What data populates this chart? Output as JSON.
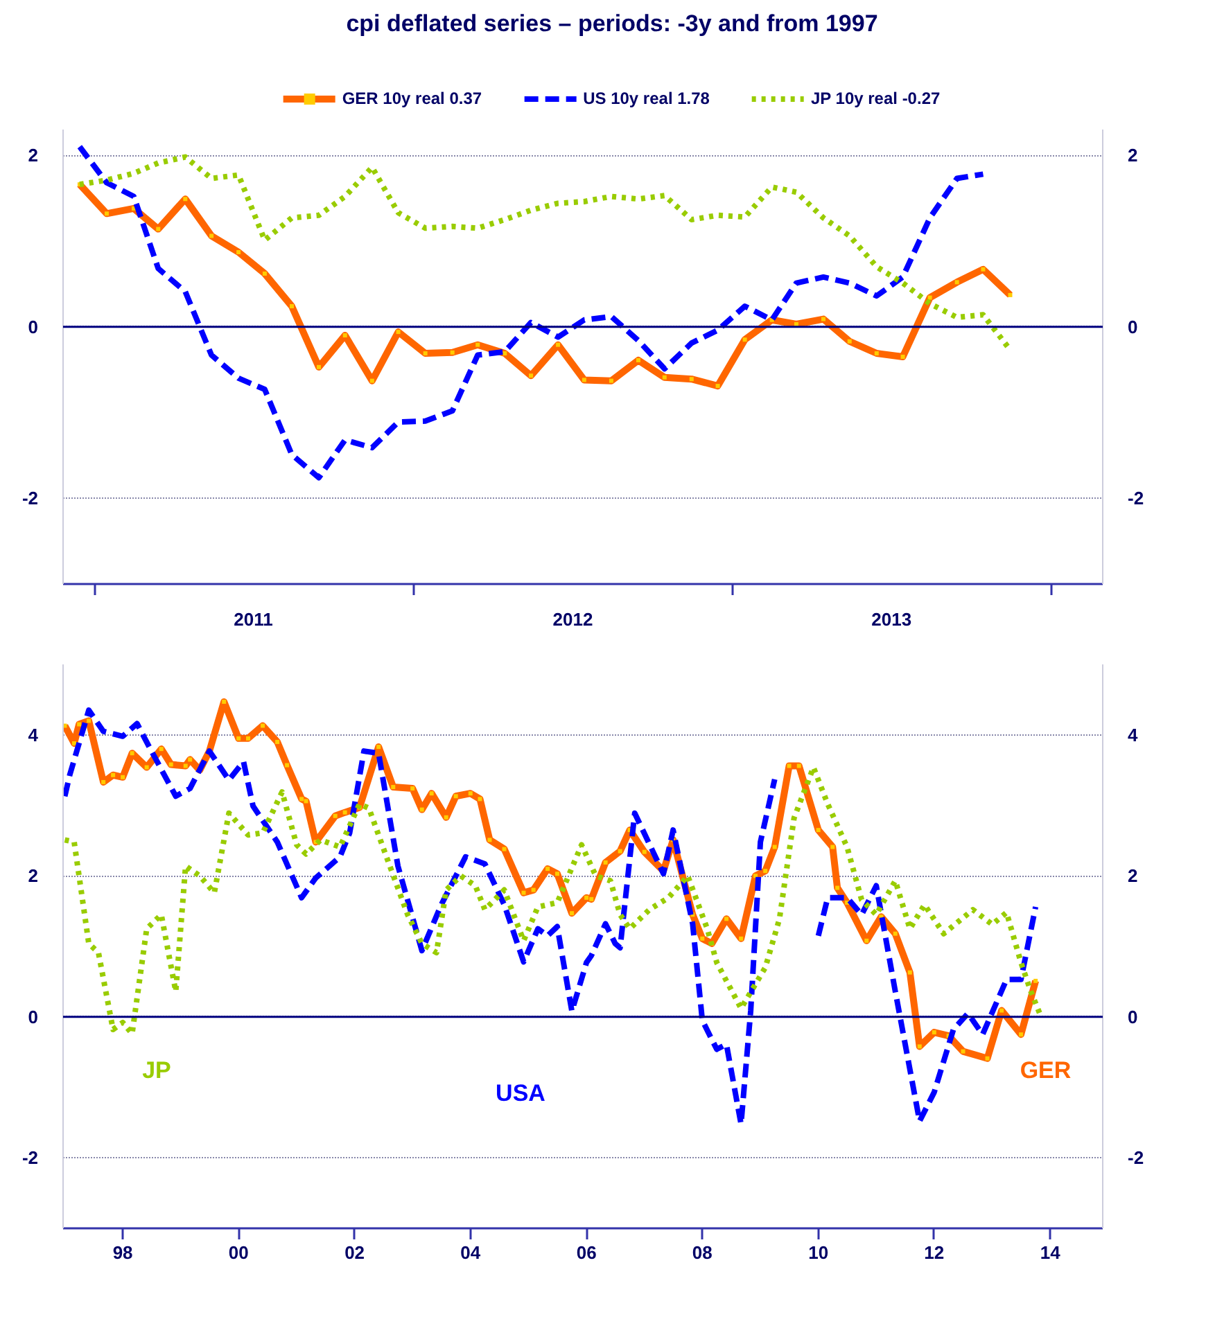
{
  "chart_data": [
    {
      "type": "line",
      "title": "cpi deflated series – periods: -3y and from 1997",
      "legend": "top",
      "grid": "y",
      "x": [
        "2010-12-15",
        "2011-01-15",
        "2011-02-15",
        "2011-03-15",
        "2011-04-15",
        "2011-05-15",
        "2011-06-15",
        "2011-07-15",
        "2011-08-15",
        "2011-09-15",
        "2011-10-15",
        "2011-11-15",
        "2011-12-15",
        "2012-01-15",
        "2012-02-15",
        "2012-03-15",
        "2012-04-15",
        "2012-05-15",
        "2012-06-15",
        "2012-07-15",
        "2012-08-15",
        "2012-09-15",
        "2012-10-15",
        "2012-11-15",
        "2012-12-15",
        "2013-01-15",
        "2013-02-15",
        "2013-03-15",
        "2013-04-15",
        "2013-05-15",
        "2013-06-15",
        "2013-07-15",
        "2013-08-15",
        "2013-09-15",
        "2013-10-15",
        "2013-11-15"
      ],
      "series": [
        {
          "name": "GER 10y real 0.37",
          "color": "#ff6600",
          "line_style": "solid",
          "marker": "square",
          "values": [
            1.66,
            1.32,
            1.38,
            1.14,
            1.49,
            1.06,
            0.87,
            0.62,
            0.24,
            -0.47,
            -0.1,
            -0.63,
            -0.06,
            -0.31,
            -0.3,
            -0.21,
            -0.31,
            -0.57,
            -0.21,
            -0.62,
            -0.63,
            -0.39,
            -0.59,
            -0.61,
            -0.69,
            -0.15,
            0.08,
            0.03,
            0.09,
            -0.17,
            -0.31,
            -0.35,
            0.34,
            0.52,
            0.67,
            0.37
          ]
        },
        {
          "name": "US 10y real 1.78",
          "color": "#0000ff",
          "line_style": "dashed",
          "values": [
            2.1,
            1.68,
            1.52,
            0.68,
            0.41,
            -0.33,
            -0.6,
            -0.73,
            -1.49,
            -1.76,
            -1.32,
            -1.41,
            -1.11,
            -1.1,
            -0.98,
            -0.33,
            -0.29,
            0.05,
            -0.12,
            0.08,
            0.12,
            -0.16,
            -0.49,
            -0.19,
            -0.04,
            0.24,
            0.08,
            0.51,
            0.58,
            0.51,
            0.36,
            0.58,
            1.27,
            1.73,
            1.78,
            null
          ]
        },
        {
          "name": "JP 10y real -0.27",
          "color": "#99cc00",
          "line_style": "dotted",
          "values": [
            1.66,
            1.71,
            1.79,
            1.91,
            1.98,
            1.73,
            1.77,
            1.01,
            1.27,
            1.3,
            1.52,
            1.86,
            1.33,
            1.15,
            1.17,
            1.15,
            1.25,
            1.36,
            1.44,
            1.46,
            1.52,
            1.49,
            1.53,
            1.25,
            1.3,
            1.28,
            1.63,
            1.57,
            1.27,
            1.06,
            0.7,
            0.51,
            0.27,
            0.11,
            0.14,
            -0.27
          ]
        }
      ],
      "xlim": [
        "2010-11-26",
        "2014-03-01"
      ],
      "xticks": [
        {
          "value": "2011-01-01",
          "label": null
        },
        {
          "value": "2011-07-02",
          "label": "2011"
        },
        {
          "value": "2012-01-01",
          "label": null
        },
        {
          "value": "2012-07-02",
          "label": "2012"
        },
        {
          "value": "2013-01-01",
          "label": null
        },
        {
          "value": "2013-07-02",
          "label": "2013"
        },
        {
          "value": "2014-01-01",
          "label": null
        }
      ],
      "ylim": [
        -3,
        2.3
      ],
      "yticks": [
        -2,
        0,
        2
      ],
      "y2lim": [
        -3,
        2.3
      ],
      "y2ticks": [
        -2,
        0,
        2
      ],
      "ref_lines": [
        {
          "axis": "y",
          "value": 0,
          "color": "#000080",
          "line_style": "solid"
        }
      ]
    },
    {
      "type": "line",
      "grid": "y",
      "series": [
        {
          "color": "#ff6600",
          "line_style": "solid",
          "marker": "square",
          "x": [
            "1997-01",
            "1997-03",
            "1997-04",
            "1997-06",
            "1997-09",
            "1997-11",
            "1998-01",
            "1998-03",
            "1998-06",
            "1998-09",
            "1998-11",
            "1999-02",
            "1999-03",
            "1999-05",
            "1999-07",
            "1999-10",
            "2000-01",
            "2000-03",
            "2000-06",
            "2000-09",
            "2000-11",
            "2001-02",
            "2001-03",
            "2001-05",
            "2001-09",
            "2001-11",
            "2002-02",
            "2002-06",
            "2002-09",
            "2003-01",
            "2003-03",
            "2003-05",
            "2003-08",
            "2003-10",
            "2004-01",
            "2004-03",
            "2004-05",
            "2004-08",
            "2004-12",
            "2005-02",
            "2005-05",
            "2005-07",
            "2005-10",
            "2006-01",
            "2006-02",
            "2006-05",
            "2006-08",
            "2006-10",
            "2007-01",
            "2007-05",
            "2007-07",
            "2007-11",
            "2008-01",
            "2008-03",
            "2008-06",
            "2008-09",
            "2008-12",
            "2009-02",
            "2009-04",
            "2009-07",
            "2009-09",
            "2010-01",
            "2010-04",
            "2010-05",
            "2010-07",
            "2010-11",
            "2011-02",
            "2011-05",
            "2011-08",
            "2011-10",
            "2012-01",
            "2012-04",
            "2012-07",
            "2012-12",
            "2013-03",
            "2013-07",
            "2013-10"
          ],
          "values": [
            4.13,
            3.88,
            4.15,
            4.2,
            3.33,
            3.43,
            3.4,
            3.74,
            3.54,
            3.8,
            3.58,
            3.56,
            3.65,
            3.5,
            3.77,
            4.47,
            3.95,
            3.95,
            4.13,
            3.9,
            3.57,
            3.09,
            3.06,
            2.48,
            2.85,
            2.9,
            2.97,
            3.83,
            3.26,
            3.24,
            2.94,
            3.17,
            2.83,
            3.13,
            3.17,
            3.09,
            2.51,
            2.38,
            1.76,
            1.8,
            2.1,
            2.03,
            1.47,
            1.69,
            1.67,
            2.19,
            2.35,
            2.65,
            2.34,
            2.07,
            2.51,
            1.45,
            1.11,
            1.04,
            1.39,
            1.11,
            2.0,
            2.07,
            2.41,
            3.56,
            3.56,
            2.65,
            2.41,
            1.83,
            1.62,
            1.08,
            1.42,
            1.18,
            0.63,
            -0.42,
            -0.22,
            -0.27,
            -0.49,
            -0.59,
            0.09,
            -0.25,
            0.51
          ]
        },
        {
          "color": "#0000ff",
          "line_style": "dashed",
          "x": [
            "1997-01",
            "1997-02",
            "1997-06",
            "1997-09",
            "1998-01",
            "1998-04",
            "1998-07",
            "1998-12",
            "1999-03",
            "1999-07",
            "1999-11",
            "2000-02",
            "2000-04",
            "2000-09",
            "2001-02",
            "2001-05",
            "2001-10",
            "2001-12",
            "2002-03",
            "2002-06",
            "2002-10",
            "2003-03",
            "2003-07",
            "2003-12",
            "2004-04",
            "2004-08",
            "2004-12",
            "2005-03",
            "2005-05",
            "2005-07",
            "2005-10",
            "2006-01",
            "2006-02",
            "2006-05",
            "2006-07",
            "2006-08",
            "2006-11",
            "2007-05",
            "2007-07",
            "2007-11",
            "2008-01",
            "2008-04",
            "2008-06",
            "2008-09",
            "2008-11",
            "2009-01",
            "2009-04",
            "2009-07",
            "2009-09",
            "2010-01",
            "2010-03",
            "2010-07",
            "2010-10",
            "2011-01",
            "2011-05",
            "2011-10",
            "2012-01",
            "2012-05",
            "2012-08",
            "2012-11",
            "2013-04",
            "2013-07",
            "2013-10"
          ],
          "values": [
            3.13,
            3.43,
            4.35,
            4.05,
            3.98,
            4.16,
            3.77,
            3.13,
            3.24,
            3.77,
            3.36,
            3.62,
            2.99,
            2.48,
            1.69,
            1.97,
            2.27,
            2.61,
            3.77,
            3.74,
            2.14,
            0.94,
            1.59,
            2.27,
            2.17,
            1.59,
            0.78,
            1.25,
            1.15,
            1.28,
            0.08,
            0.77,
            0.87,
            1.32,
            1.04,
            0.98,
            2.89,
            2.03,
            2.65,
            1.32,
            -0.05,
            -0.46,
            -0.39,
            -1.52,
            0.09,
            2.48,
            3.37,
            null,
            null,
            1.15,
            1.69,
            1.69,
            1.45,
            1.86,
            0.36,
            -1.48,
            -1.07,
            -0.18,
            0.05,
            -0.25,
            0.53,
            0.53,
            1.56
          ]
        },
        {
          "color": "#99cc00",
          "line_style": "dotted",
          "x": [
            "1997-01",
            "1997-03",
            "1997-06",
            "1997-08",
            "1997-11",
            "1998-01",
            "1998-03",
            "1998-06",
            "1998-09",
            "1998-12",
            "1999-02",
            "1999-05",
            "1999-08",
            "1999-11",
            "2000-03",
            "2000-06",
            "2000-10",
            "2001-01",
            "2001-03",
            "2001-06",
            "2001-10",
            "2002-02",
            "2002-04",
            "2002-08",
            "2002-12",
            "2003-03",
            "2003-06",
            "2003-08",
            "2003-11",
            "2004-02",
            "2004-04",
            "2004-08",
            "2004-12",
            "2005-03",
            "2005-07",
            "2005-12",
            "2006-03",
            "2006-06",
            "2006-08",
            "2006-10",
            "2007-02",
            "2007-06",
            "2007-10",
            "2008-02",
            "2008-04",
            "2008-09",
            "2009-02",
            "2009-05",
            "2009-08",
            "2009-12",
            "2010-03",
            "2010-07",
            "2010-10",
            "2011-01",
            "2011-05",
            "2011-08",
            "2011-11",
            "2012-03",
            "2012-09",
            "2013-01",
            "2013-04",
            "2013-07",
            "2013-09",
            "2013-11"
          ],
          "values": [
            2.51,
            2.48,
            1.04,
            0.91,
            -0.18,
            -0.08,
            -0.24,
            1.25,
            1.45,
            0.36,
            2.14,
            2.0,
            1.76,
            2.89,
            2.58,
            2.61,
            3.19,
            2.44,
            2.31,
            2.51,
            2.41,
            3.02,
            2.96,
            2.2,
            1.45,
            1.04,
            0.91,
            1.8,
            2.0,
            1.86,
            1.52,
            1.8,
            1.08,
            1.56,
            1.62,
            2.44,
            2.0,
            1.93,
            1.45,
            1.25,
            1.52,
            1.69,
            2.0,
            1.25,
            0.77,
            0.12,
            0.7,
            1.39,
            2.82,
            3.54,
            3.02,
            2.41,
            1.66,
            1.45,
            1.93,
            1.25,
            1.59,
            1.18,
            1.52,
            1.31,
            1.48,
            0.77,
            0.36,
            0.02
          ]
        }
      ],
      "xlim": [
        "1996-12-21",
        "2014-11-28"
      ],
      "xticks": [
        {
          "value": "1998-01-01",
          "label": "98"
        },
        {
          "value": "2000-01-01",
          "label": "00"
        },
        {
          "value": "2002-01-01",
          "label": "02"
        },
        {
          "value": "2004-01-01",
          "label": "04"
        },
        {
          "value": "2006-01-01",
          "label": "06"
        },
        {
          "value": "2008-01-01",
          "label": "08"
        },
        {
          "value": "2010-01-01",
          "label": "10"
        },
        {
          "value": "2012-01-01",
          "label": "12"
        },
        {
          "value": "2014-01-01",
          "label": "14"
        }
      ],
      "ylim": [
        -3,
        5
      ],
      "yticks": [
        -2,
        0,
        2,
        4
      ],
      "y2lim": [
        -3,
        5
      ],
      "y2ticks": [
        -2,
        0,
        2,
        4
      ],
      "ref_lines": [
        {
          "axis": "y",
          "value": 0,
          "color": "#000080",
          "line_style": "solid"
        }
      ],
      "annotations": [
        "GER",
        "USA",
        "JP"
      ]
    }
  ]
}
